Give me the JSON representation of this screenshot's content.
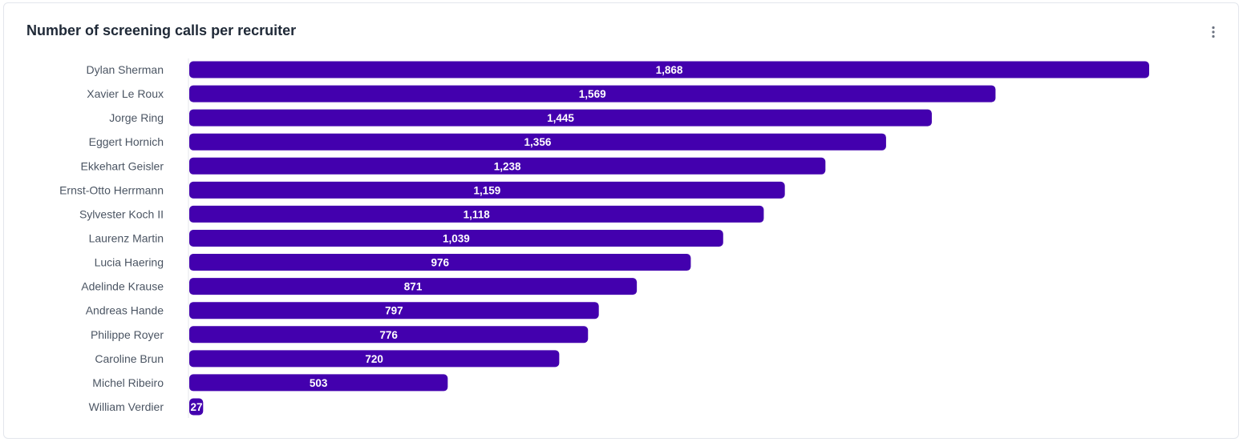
{
  "card": {
    "title": "Number of screening calls per recruiter",
    "menu_icon": "more-vertical-icon"
  },
  "colors": {
    "bar": "#4300ae",
    "axis_line": "#e5e7eb",
    "label": "#4b5563",
    "title": "#1f2937"
  },
  "chart_data": {
    "type": "bar",
    "orientation": "horizontal",
    "title": "Number of screening calls per recruiter",
    "xlabel": "",
    "ylabel": "",
    "xlim": [
      0,
      1868
    ],
    "grid": false,
    "legend": "none",
    "categories": [
      "Dylan Sherman",
      "Xavier Le Roux",
      "Jorge Ring",
      "Eggert Hornich",
      "Ekkehart Geisler",
      "Ernst-Otto Herrmann",
      "Sylvester Koch II",
      "Laurenz Martin",
      "Lucia Haering",
      "Adelinde Krause",
      "Andreas Hande",
      "Philippe Royer",
      "Caroline Brun",
      "Michel Ribeiro",
      "William Verdier"
    ],
    "values": [
      1868,
      1569,
      1445,
      1356,
      1238,
      1159,
      1118,
      1039,
      976,
      871,
      797,
      776,
      720,
      503,
      27
    ],
    "value_labels": [
      "1,868",
      "1,569",
      "1,445",
      "1,356",
      "1,238",
      "1,159",
      "1,118",
      "1,039",
      "976",
      "871",
      "797",
      "776",
      "720",
      "503",
      "27"
    ]
  }
}
